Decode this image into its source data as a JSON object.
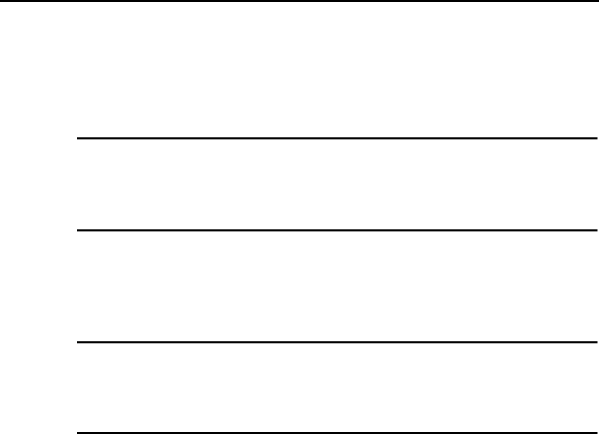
{
  "document": {
    "rule_color": "#000000",
    "background_color": "#ffffff"
  }
}
